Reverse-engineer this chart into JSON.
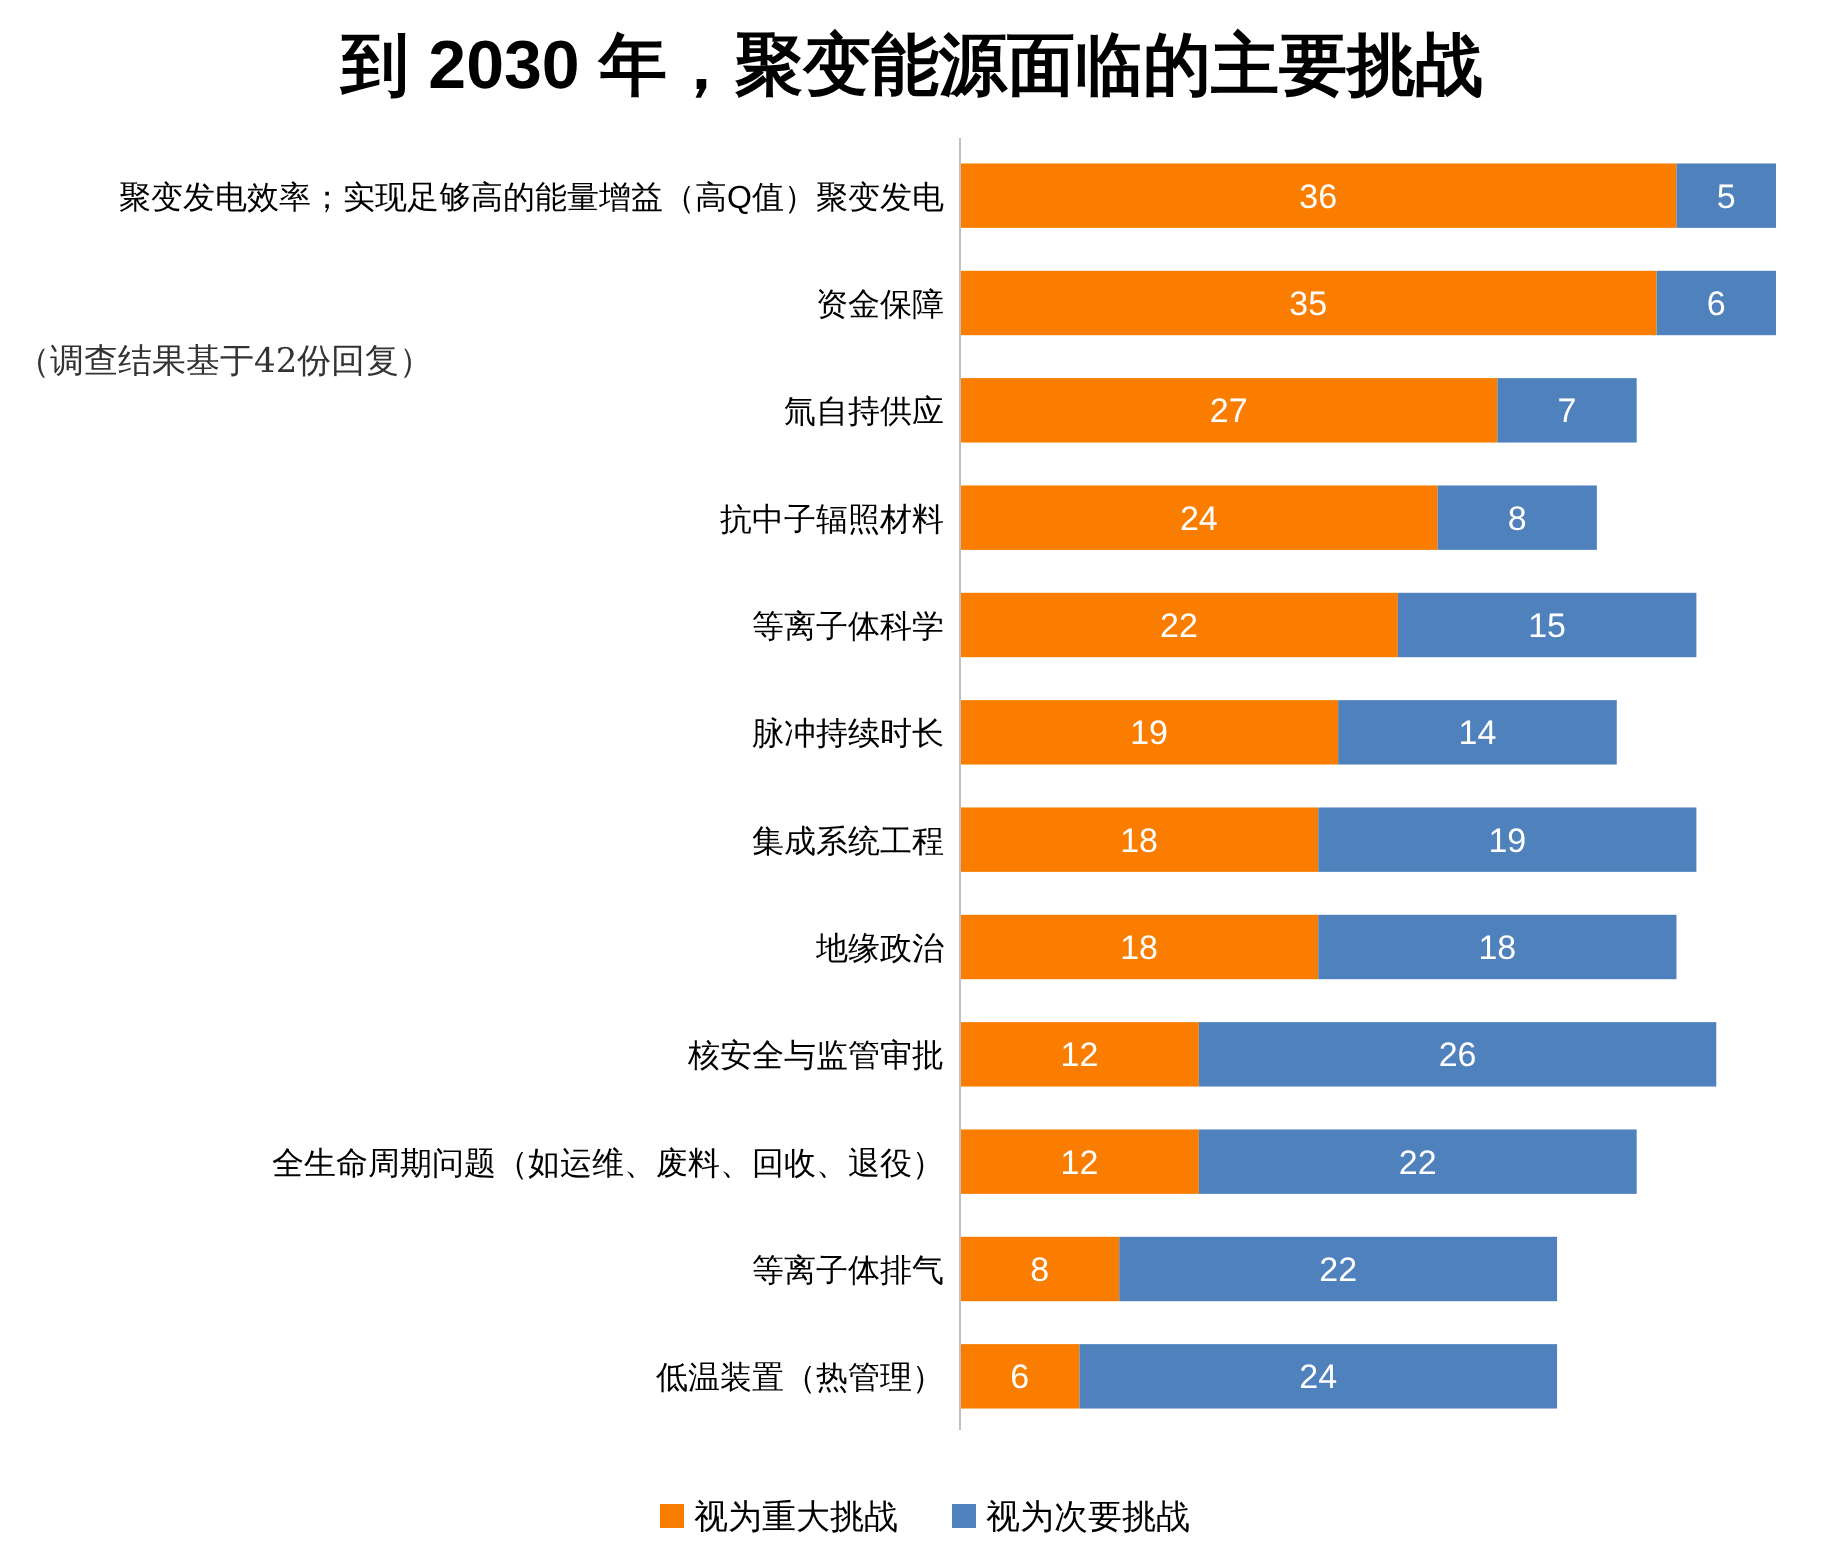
{
  "chart_data": {
    "type": "bar",
    "orientation": "horizontal",
    "stacked": true,
    "title": "到 2030 年，聚变能源面临的主要挑战",
    "categories": [
      "聚变发电效率；实现足够高的能量增益（高Q值）聚变发电",
      "资金保障",
      "氚自持供应",
      "抗中子辐照材料",
      "等离子体科学",
      "脉冲持续时长",
      "集成系统工程",
      "地缘政治",
      "核安全与监管审批",
      "全生命周期问题（如运维、废料、回收、退役）",
      "等离子体排气",
      "低温装置（热管理）"
    ],
    "series": [
      {
        "name": "视为重大挑战",
        "color": "#fa7d00",
        "values": [
          36,
          35,
          27,
          24,
          22,
          19,
          18,
          18,
          12,
          12,
          8,
          6
        ]
      },
      {
        "name": "视为次要挑战",
        "color": "#4f81bd",
        "values": [
          5,
          6,
          7,
          8,
          15,
          14,
          19,
          18,
          26,
          22,
          22,
          24
        ]
      }
    ],
    "data_labels": true,
    "legend": "bottom",
    "tick_labels": "y",
    "annotations": [
      "（调查结果基于42份回复）"
    ]
  }
}
